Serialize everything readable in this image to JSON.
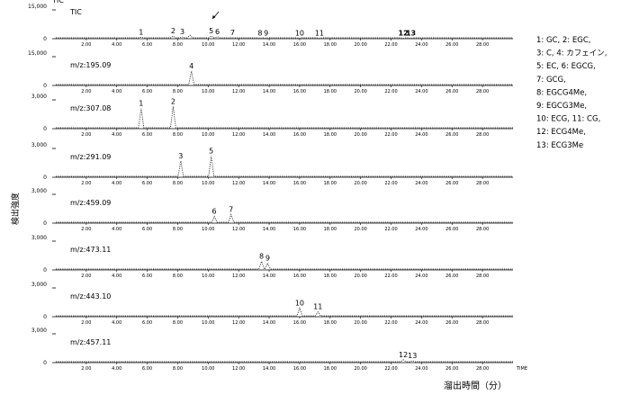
{
  "chart_data": {
    "type": "line",
    "ylabel": "検出強度",
    "xlabel": "溜出時間（分）",
    "x_unit": "TIME",
    "x_range": [
      0,
      30
    ],
    "x_ticks": [
      "2.00",
      "4.00",
      "6.00",
      "8.00",
      "10.00",
      "12.00",
      "14.00",
      "16.00",
      "18.00",
      "20.00",
      "22.00",
      "24.00",
      "26.00",
      "28.00"
    ],
    "legend": [
      "1: GC, 2: EGC,",
      "3: C, 4: カフェイン,",
      "5: EC, 6: EGCG,",
      "7: GCG,",
      "8: EGCG4Me,",
      "9: EGCG3Me,",
      "10: ECG, 11: CG,",
      "12: ECG4Me,",
      "13: ECG3Me"
    ],
    "panels": [
      {
        "label": "TIC",
        "inner": "TIC",
        "ymax_label": "15,000",
        "ymin_label": "0",
        "ymax": 15000,
        "peaks": [
          {
            "x": 5.6,
            "y": 800,
            "label": "1"
          },
          {
            "x": 7.7,
            "y": 1300,
            "label": "2"
          },
          {
            "x": 8.3,
            "y": 900,
            "label": "3"
          },
          {
            "x": 8.8,
            "y": 1800,
            "label": ""
          },
          {
            "x": 10.2,
            "y": 1400,
            "label": "5"
          },
          {
            "x": 10.6,
            "y": 1000,
            "label": "6"
          },
          {
            "x": 11.6,
            "y": 500,
            "label": "7"
          },
          {
            "x": 13.4,
            "y": 300,
            "label": "8"
          },
          {
            "x": 13.8,
            "y": 300,
            "label": "9"
          },
          {
            "x": 16.0,
            "y": 300,
            "label": "10"
          },
          {
            "x": 17.3,
            "y": 250,
            "label": "11"
          },
          {
            "x": 22.8,
            "y": 200,
            "label": "12"
          },
          {
            "x": 23.3,
            "y": 200,
            "label": "13"
          }
        ]
      },
      {
        "label": "m/z:195.09",
        "ymax_label": "15,000",
        "ymin_label": "0",
        "ymax": 15000,
        "peaks": [
          {
            "x": 8.9,
            "y": 7500,
            "label": "4"
          }
        ]
      },
      {
        "label": "m/z:307.08",
        "ymax_label": "3,000",
        "ymin_label": "0",
        "ymax": 3000,
        "peaks": [
          {
            "x": 5.6,
            "y": 2100,
            "label": "1"
          },
          {
            "x": 7.7,
            "y": 2300,
            "label": "2"
          }
        ]
      },
      {
        "label": "m/z:291.09",
        "ymax_label": "3,000",
        "ymin_label": "0",
        "ymax": 3000,
        "peaks": [
          {
            "x": 8.2,
            "y": 1700,
            "label": "3"
          },
          {
            "x": 10.2,
            "y": 2200,
            "label": "5"
          }
        ]
      },
      {
        "label": "m/z:459.09",
        "ymax_label": "3,000",
        "ymin_label": "0",
        "ymax": 3000,
        "peaks": [
          {
            "x": 10.4,
            "y": 700,
            "label": "6"
          },
          {
            "x": 11.5,
            "y": 900,
            "label": "7"
          }
        ]
      },
      {
        "label": "m/z:473.11",
        "ymax_label": "3,000",
        "ymin_label": "0",
        "ymax": 3000,
        "peaks": [
          {
            "x": 13.5,
            "y": 900,
            "label": "8"
          },
          {
            "x": 13.9,
            "y": 700,
            "label": "9"
          }
        ]
      },
      {
        "label": "m/z:443.10",
        "ymax_label": "3,000",
        "ymin_label": "0",
        "ymax": 3000,
        "peaks": [
          {
            "x": 16.0,
            "y": 900,
            "label": "10"
          },
          {
            "x": 17.2,
            "y": 500,
            "label": "11"
          }
        ]
      },
      {
        "label": "m/z:457.11",
        "ymax_label": "3,000",
        "ymin_label": "0",
        "ymax": 3000,
        "peaks": [
          {
            "x": 22.8,
            "y": 300,
            "label": "12"
          },
          {
            "x": 23.4,
            "y": 200,
            "label": "13"
          }
        ]
      }
    ]
  }
}
